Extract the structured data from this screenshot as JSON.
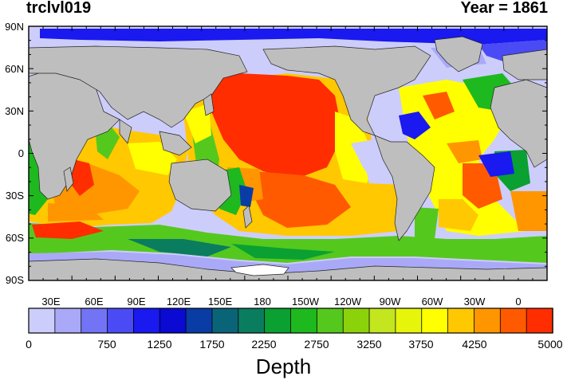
{
  "header": {
    "left_title": "trclvl019",
    "right_title": "Year = 1861"
  },
  "map": {
    "lat_labels": [
      "90N",
      "60N",
      "30N",
      "0",
      "30S",
      "60S",
      "90S"
    ],
    "lon_labels": [
      "30E",
      "60E",
      "90E",
      "120E",
      "150E",
      "180",
      "150W",
      "120W",
      "90W",
      "60W",
      "30W",
      "0"
    ],
    "land_color": "#bebebe",
    "ice_color": "#ffffff"
  },
  "colorbar": {
    "title": "Depth",
    "labels": [
      "0",
      "750",
      "1250",
      "1750",
      "2250",
      "2750",
      "3250",
      "3750",
      "4250",
      "5000"
    ],
    "colors": [
      "#cdcdfb",
      "#a9a9f7",
      "#7373f5",
      "#4b4bf5",
      "#1919f0",
      "#0a0ad2",
      "#0a3ca5",
      "#0a6478",
      "#0a7d5f",
      "#0aa032",
      "#1eb91e",
      "#55c81e",
      "#8cd20a",
      "#c3e61e",
      "#e6f50a",
      "#ffff00",
      "#ffc800",
      "#ff9600",
      "#ff5a00",
      "#ff2d00"
    ]
  }
}
